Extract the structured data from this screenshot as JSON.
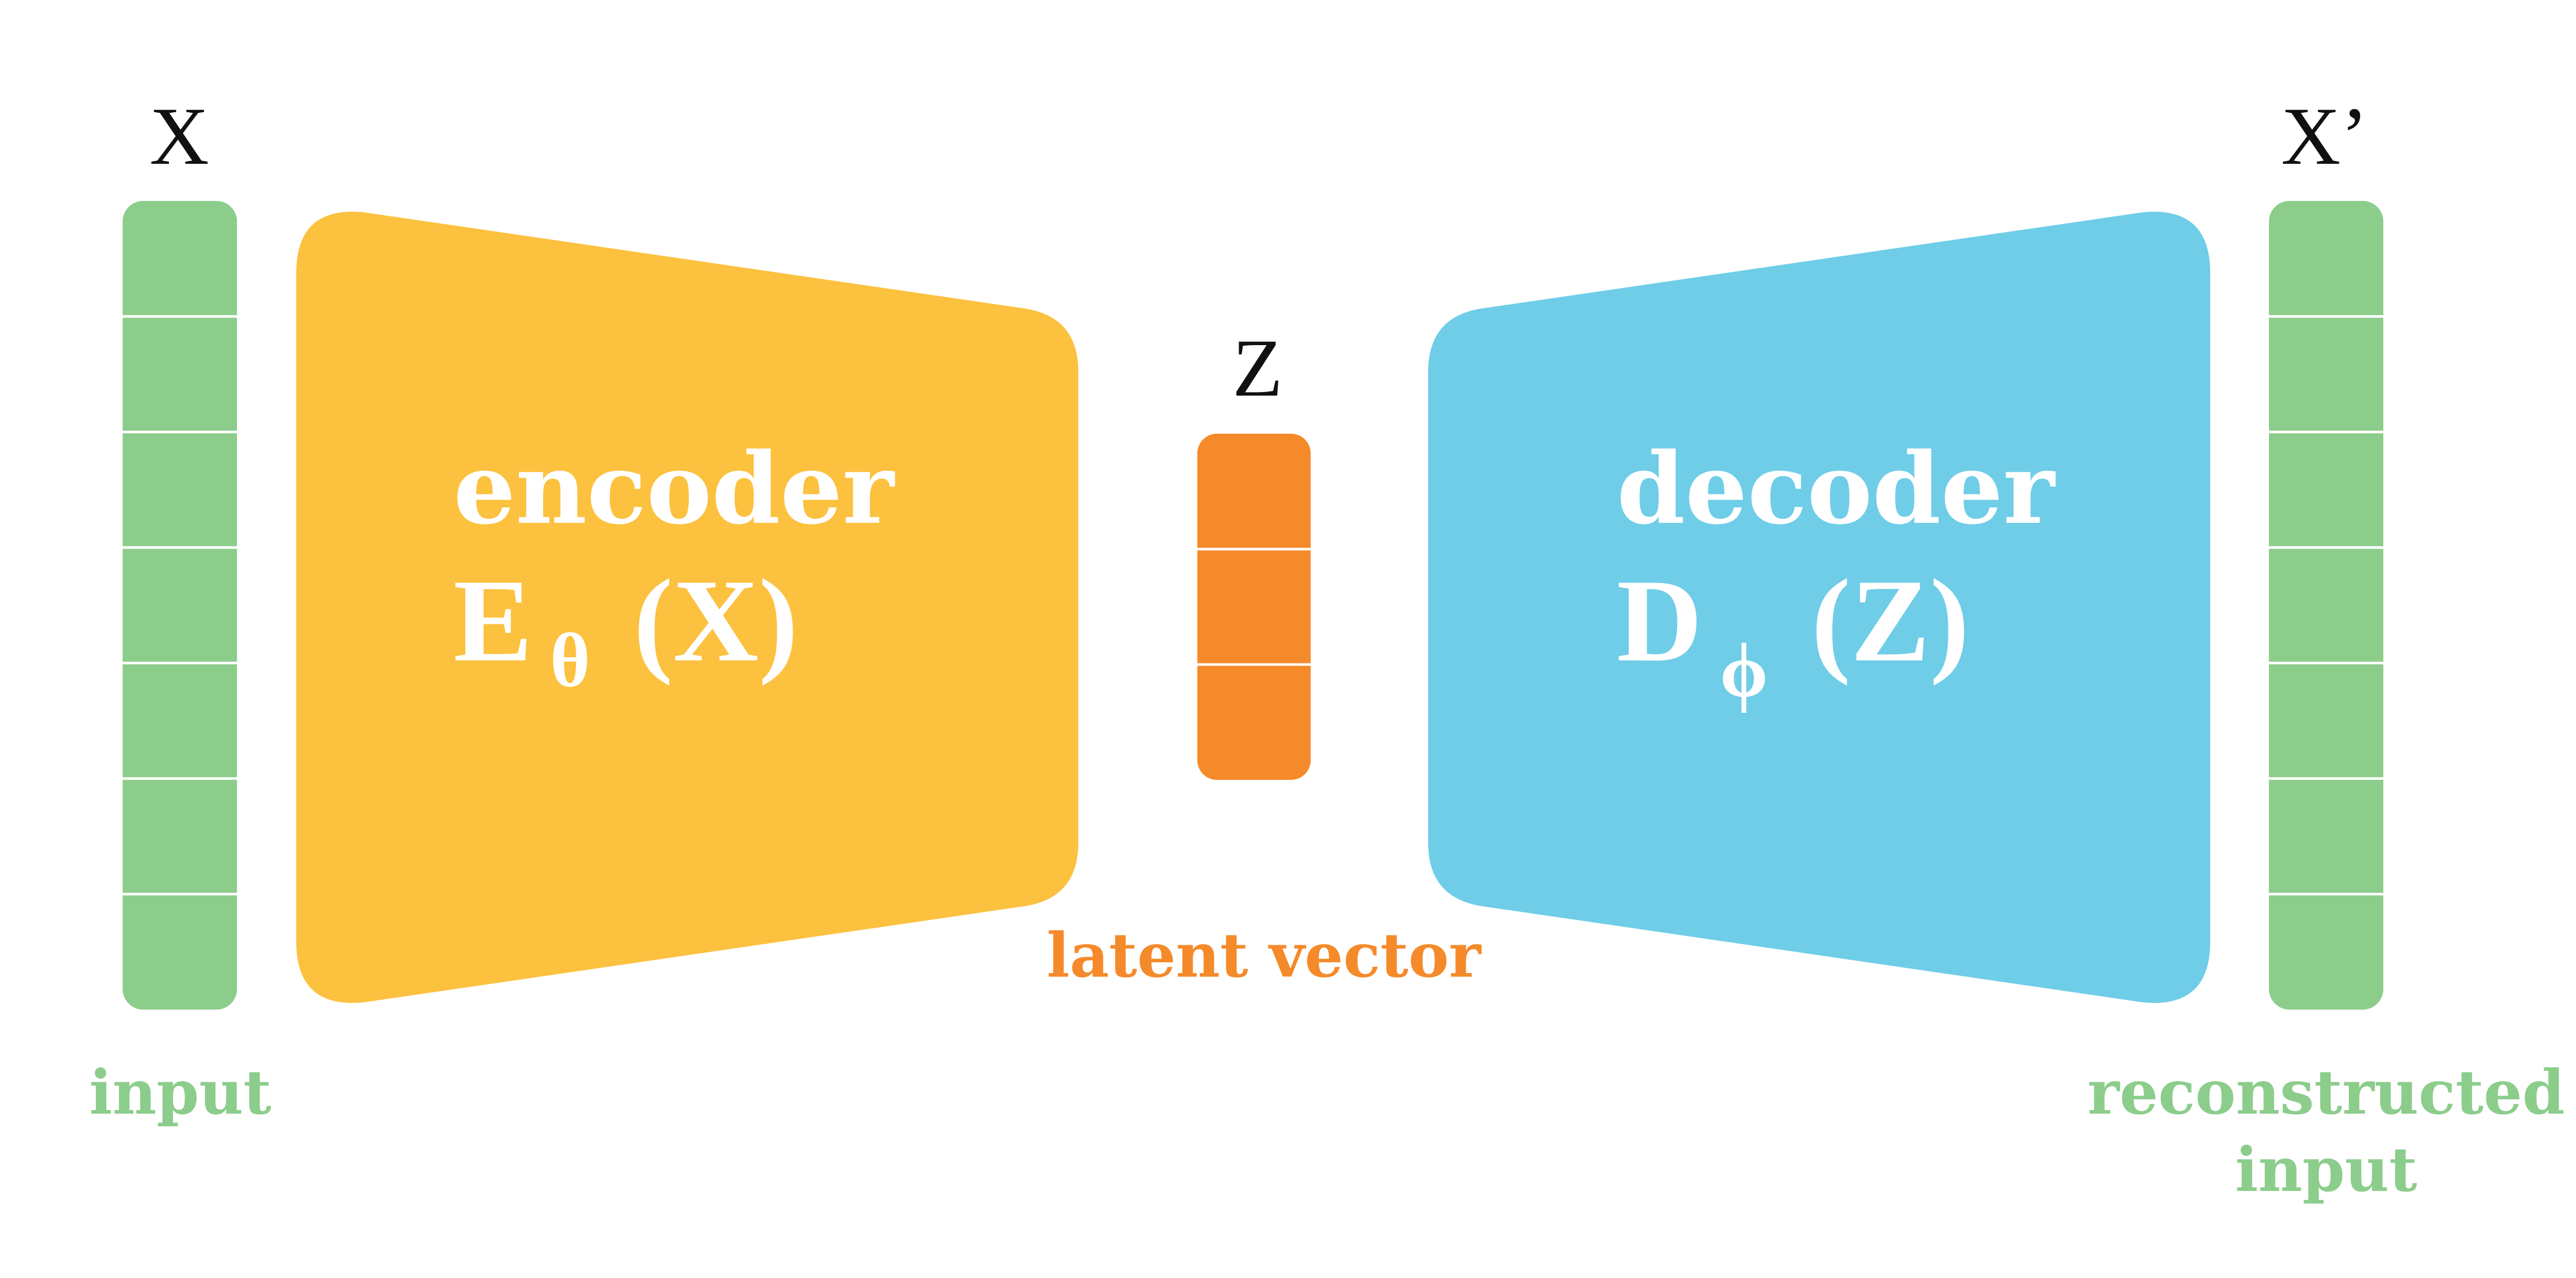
{
  "colors": {
    "input_green": "#8ccd8c",
    "encoder_yellow": "#fcc13f",
    "latent_orange": "#f58a2b",
    "decoder_blue": "#6fcde8",
    "text_dark": "#111111",
    "text_white": "#ffffff"
  },
  "input": {
    "symbol": "X",
    "caption": "input",
    "cells": 7
  },
  "encoder": {
    "title": "encoder",
    "func": "E",
    "subscript": "θ",
    "argument": "(X)"
  },
  "latent": {
    "symbol": "Z",
    "caption": "latent vector",
    "cells": 3
  },
  "decoder": {
    "title": "decoder",
    "func": "D",
    "subscript": "ϕ",
    "argument": "(Z)"
  },
  "output": {
    "symbol": "X’",
    "caption_line1": "reconstructed",
    "caption_line2": "input",
    "cells": 7
  }
}
